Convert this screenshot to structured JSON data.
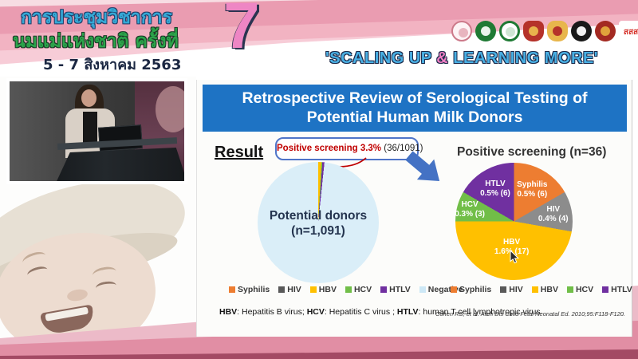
{
  "banner": {
    "title_line1": "การประชุมวิชาการ",
    "title_line2": "นมแม่แห่งชาติ ครั้งที่",
    "date_line": "5 - 7 สิงหาคม 2563",
    "edition_number": "7",
    "slogan_part1": "'SCALING UP ",
    "slogan_amp": "&",
    "slogan_part2": " LEARNING MORE'",
    "sss_text": "สสส",
    "logos": [
      {
        "name": "mother-child-foundation-logo"
      },
      {
        "name": "green-medical-seal-logo"
      },
      {
        "name": "green-ring-seal-logo"
      },
      {
        "name": "red-gold-royal-emblem-logo"
      },
      {
        "name": "gold-crown-college-logo"
      },
      {
        "name": "black-university-seal-logo"
      },
      {
        "name": "red-crown-society-logo"
      },
      {
        "name": "thai-health-sss-logo"
      }
    ]
  },
  "slide": {
    "title_line1": "Retrospective Review of Serological Testing of",
    "title_line2": "Potential Human Milk Donors",
    "result_label": "Result",
    "footnote": [
      {
        "term": "HBV",
        "rest": ": Hepatitis B virus; "
      },
      {
        "term": "HCV",
        "rest": ": Hepatitis C virus ; "
      },
      {
        "term": "HTLV",
        "rest": ": human T cell lymphotropic virus"
      }
    ],
    "citation": "Cohen RS, et al. Arch Dis Child Fetal Neonatal Ed. 2010;95:F118-F120."
  },
  "chart_data": [
    {
      "type": "pie",
      "title": "Potential donors (n=1,091)",
      "center_label": [
        "Potential donors",
        "(n=1,091)"
      ],
      "total": 1091,
      "slices": [
        {
          "label": "Syphilis",
          "value": 6,
          "color": "#ED7D31"
        },
        {
          "label": "HIV",
          "value": 4,
          "color": "#8C8C8C"
        },
        {
          "label": "HBV",
          "value": 17,
          "color": "#FFC000"
        },
        {
          "label": "HCV",
          "value": 3,
          "color": "#71BE48"
        },
        {
          "label": "HTLV",
          "value": 6,
          "color": "#7030A0"
        },
        {
          "label": "Negative",
          "value": 1055,
          "color": "#DAEEF8"
        }
      ],
      "annotation": {
        "highlight": "Positive screening 3.3%",
        "detail": "(36/1091)"
      },
      "legend": [
        "Syphilis",
        "HIV",
        "HBV",
        "HCV",
        "HTLV",
        "Negative"
      ],
      "legend_position": "bottom"
    },
    {
      "type": "pie",
      "title": "Positive screening (n=36)",
      "total": 36,
      "slices": [
        {
          "label": "Syphilis",
          "value": 6,
          "display": "0.5% (6)",
          "color": "#ED7D31"
        },
        {
          "label": "HIV",
          "value": 4,
          "display": "0.4% (4)",
          "color": "#8C8C8C"
        },
        {
          "label": "HBV",
          "value": 17,
          "display": "1.6% (17)",
          "color": "#FFC000"
        },
        {
          "label": "HCV",
          "value": 3,
          "display": "0.3% (3)",
          "color": "#71BE48"
        },
        {
          "label": "HTLV",
          "value": 6,
          "display": "0.5% (6)",
          "color": "#7030A0"
        }
      ],
      "legend": [
        "Syphilis",
        "HIV",
        "HBV",
        "HCV",
        "HTLV"
      ],
      "legend_position": "bottom"
    }
  ],
  "colors": {
    "title_bar_blue": "#1E73C4",
    "arrow_blue": "#4472C4",
    "highlight_red": "#C00000",
    "banner_pink": "#EA9CB1",
    "slogan_blue": "#49B0E4",
    "slogan_amp_pink": "#EF7FC3",
    "legend": {
      "Syphilis": "#ED7D31",
      "HIV": "#595959",
      "HBV": "#FFC000",
      "HCV": "#71BE48",
      "HTLV": "#7030A0",
      "Negative": "#CDE8F6"
    }
  }
}
